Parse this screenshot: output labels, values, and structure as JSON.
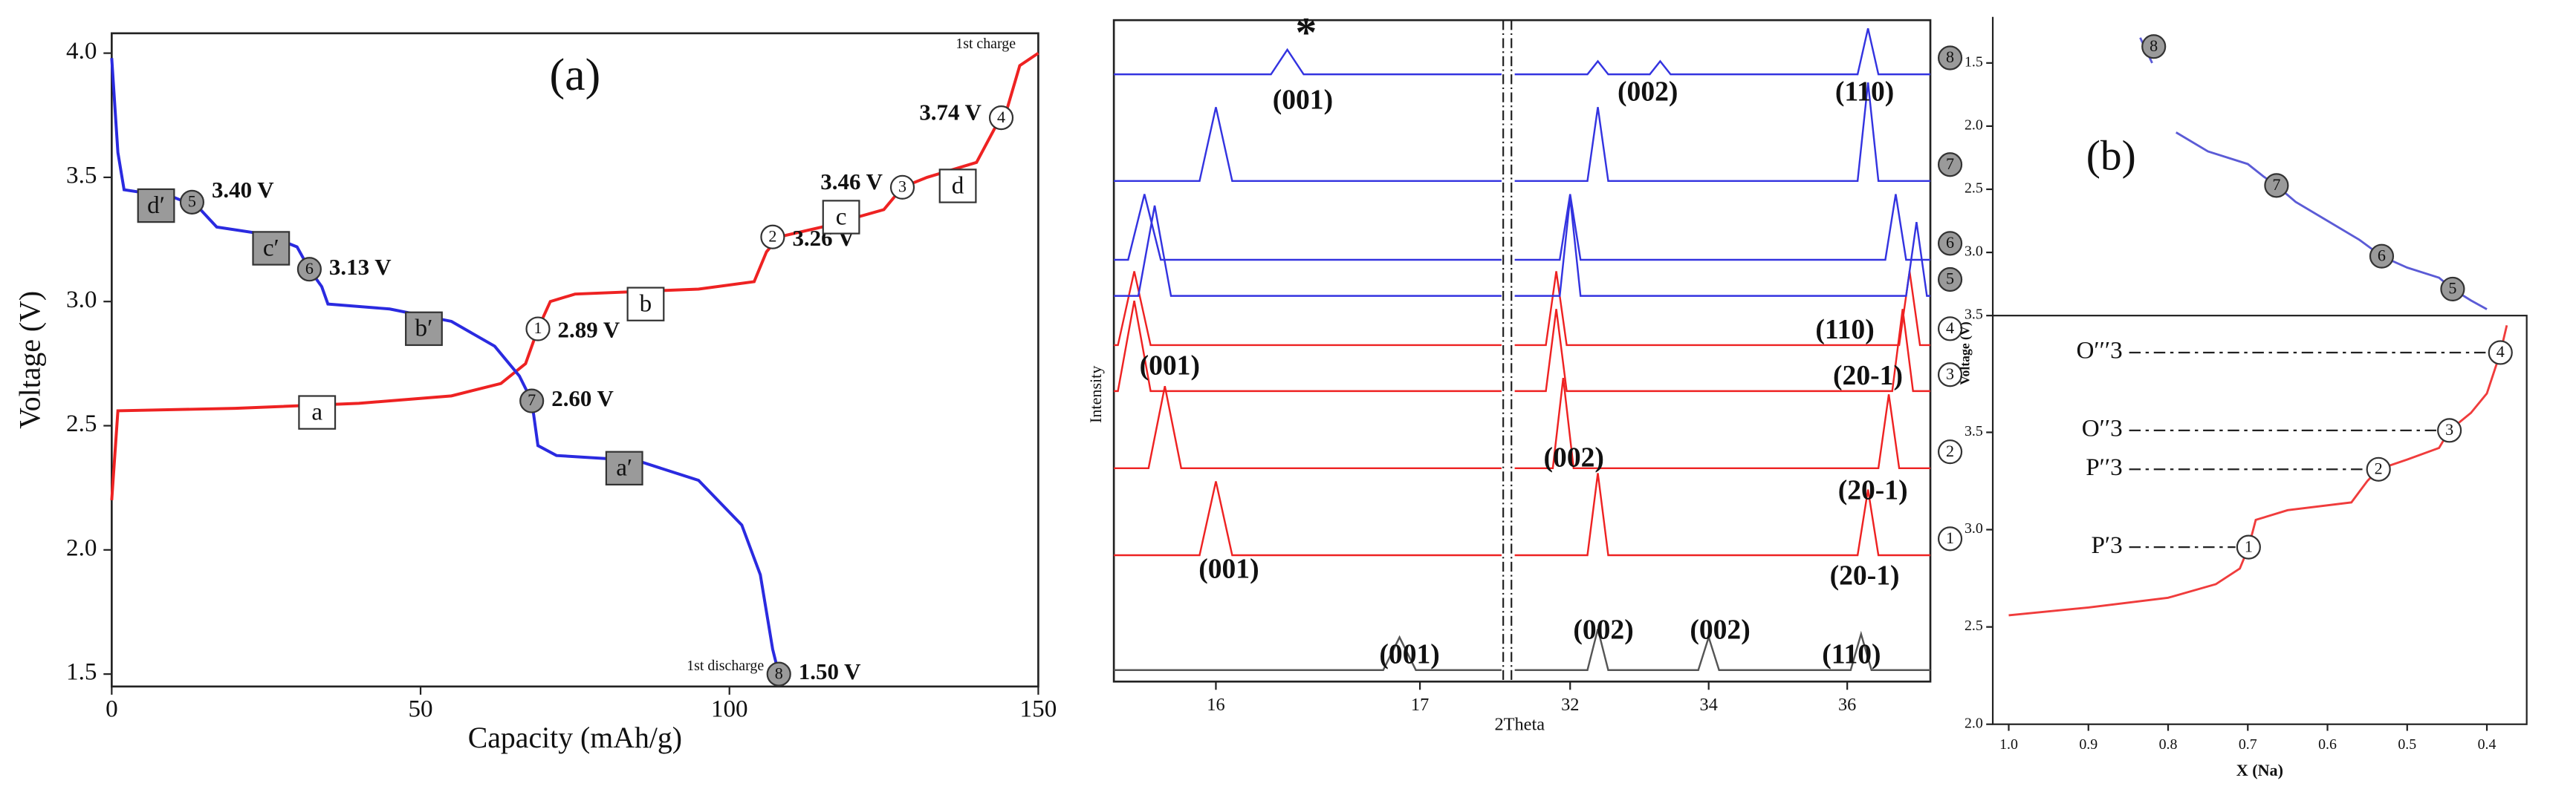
{
  "chart_data": [
    {
      "type": "line",
      "panel_label": "(a)",
      "xlabel": "Capacity (mAh/g)",
      "ylabel": "Voltage (V)",
      "xlim": [
        0,
        150
      ],
      "xticks": [
        0,
        50,
        100,
        150
      ],
      "ylim": [
        1.45,
        4.08
      ],
      "yticks": [
        1.5,
        {
          "value": 2,
          "label": "2.0"
        },
        2.5,
        {
          "value": 3,
          "label": "3.0"
        },
        3.5,
        {
          "value": 4,
          "label": "4.0"
        }
      ],
      "series": [
        {
          "color": "#ee2222",
          "x": [
            0,
            1,
            20,
            40,
            55,
            63,
            67,
            69,
            71,
            75,
            95,
            104,
            106,
            108,
            115,
            125,
            128,
            132,
            140,
            143,
            145,
            147,
            150
          ],
          "values": [
            2.2,
            2.56,
            2.57,
            2.59,
            2.62,
            2.67,
            2.75,
            2.89,
            3.0,
            3.03,
            3.05,
            3.08,
            3.2,
            3.26,
            3.3,
            3.37,
            3.46,
            3.5,
            3.56,
            3.7,
            3.78,
            3.95,
            4.0
          ]
        },
        {
          "color": "#2a2ae0",
          "x": [
            0,
            1,
            2,
            10,
            14,
            17,
            25,
            30,
            32,
            34,
            35,
            45,
            55,
            62,
            66,
            68,
            69,
            72,
            85,
            95,
            102,
            105,
            107,
            108
          ],
          "values": [
            3.98,
            3.6,
            3.45,
            3.42,
            3.38,
            3.3,
            3.27,
            3.22,
            3.13,
            3.06,
            2.99,
            2.97,
            2.92,
            2.82,
            2.7,
            2.6,
            2.42,
            2.38,
            2.36,
            2.28,
            2.1,
            1.9,
            1.6,
            1.5
          ]
        }
      ],
      "markers": [
        {
          "label": "1",
          "x": 69,
          "y": 2.89,
          "text": "2.89 V",
          "color": "#ffffff"
        },
        {
          "label": "2",
          "x": 107,
          "y": 3.26,
          "text": "3.26 V",
          "color": "#ffffff"
        },
        {
          "label": "3",
          "x": 128,
          "y": 3.46,
          "text": "3.46 V",
          "color": "#ffffff"
        },
        {
          "label": "4",
          "x": 144,
          "y": 3.74,
          "text": "3.74 V",
          "color": "#ffffff"
        },
        {
          "label": "5",
          "x": 13,
          "y": 3.4,
          "text": "3.40 V",
          "color": "#9a9a9a"
        },
        {
          "label": "6",
          "x": 32,
          "y": 3.13,
          "text": "3.13 V",
          "color": "#9a9a9a"
        },
        {
          "label": "7",
          "x": 68,
          "y": 2.6,
          "text": "2.60 V",
          "color": "#9a9a9a"
        },
        {
          "label": "8",
          "x": 108,
          "y": 1.5,
          "text": "1.50 V",
          "color": "#9a9a9a"
        }
      ],
      "phase_labels": [
        "a",
        "b",
        "c",
        "d",
        "a′",
        "b′",
        "c′",
        "d′"
      ],
      "annotations": [
        "1st charge",
        "1st discharge"
      ]
    },
    {
      "type": "stacked-line",
      "ylabel": "Intensity",
      "xlim": [
        15.5,
        17.4
      ],
      "xticks": [
        16,
        17
      ],
      "series": [
        {
          "color": "#555555",
          "x": [
            15.5,
            16.82,
            16.9,
            16.98,
            17.4
          ],
          "values": [
            0,
            0,
            20,
            0,
            0
          ]
        },
        {
          "color": "#ee2222",
          "x": [
            15.5,
            15.92,
            16.0,
            16.08,
            17.4
          ],
          "values": [
            0,
            0,
            45,
            0,
            0
          ]
        },
        {
          "color": "#ee2222",
          "x": [
            15.5,
            15.67,
            15.75,
            15.83,
            17.4
          ],
          "values": [
            0,
            0,
            50,
            0,
            0
          ]
        },
        {
          "color": "#ee2222",
          "x": [
            15.5,
            15.52,
            15.6,
            15.68,
            17.4
          ],
          "values": [
            0,
            0,
            55,
            0,
            0
          ]
        },
        {
          "color": "#ee2222",
          "x": [
            15.5,
            15.52,
            15.6,
            15.68,
            17.4
          ],
          "values": [
            0,
            0,
            45,
            0,
            0
          ]
        },
        {
          "color": "#3333e0",
          "x": [
            15.5,
            15.62,
            15.7,
            15.78,
            17.4
          ],
          "values": [
            0,
            0,
            55,
            0,
            0
          ]
        },
        {
          "color": "#3333e0",
          "x": [
            15.5,
            15.57,
            15.65,
            15.73,
            17.4
          ],
          "values": [
            0,
            0,
            40,
            0,
            0
          ]
        },
        {
          "color": "#3333e0",
          "x": [
            15.5,
            15.92,
            16.0,
            16.08,
            17.4
          ],
          "values": [
            0,
            0,
            45,
            0,
            0
          ]
        },
        {
          "color": "#3333e0",
          "x": [
            15.5,
            16.27,
            16.35,
            16.43,
            17.4
          ],
          "values": [
            0,
            0,
            15,
            0,
            0
          ]
        }
      ]
    },
    {
      "type": "stacked-line",
      "xlabel": "2Theta",
      "xlim": [
        31.2,
        37.2
      ],
      "xticks": [
        32,
        34,
        36
      ],
      "series": [
        {
          "color": "#555555",
          "x": [
            31.2,
            32.25,
            32.4,
            32.55,
            33.85,
            34.0,
            34.15,
            36.05,
            36.2,
            36.35,
            37.2
          ],
          "values": [
            0,
            0,
            25,
            0,
            0,
            20,
            0,
            0,
            22,
            0,
            0
          ]
        },
        {
          "name": "1",
          "marker_color": "#ffffff",
          "color": "#ee2222",
          "x": [
            31.2,
            32.25,
            32.4,
            32.55,
            36.15,
            36.3,
            36.45,
            37.2
          ],
          "values": [
            0,
            0,
            50,
            0,
            0,
            40,
            0,
            0
          ]
        },
        {
          "name": "2",
          "marker_color": "#ffffff",
          "color": "#ee2222",
          "x": [
            31.2,
            31.75,
            31.9,
            32.05,
            36.45,
            36.6,
            36.75,
            37.2
          ],
          "values": [
            0,
            0,
            55,
            0,
            0,
            45,
            0,
            0
          ]
        },
        {
          "name": "3",
          "marker_color": "#ffffff",
          "color": "#ee2222",
          "x": [
            31.2,
            31.65,
            31.8,
            31.95,
            36.65,
            36.8,
            36.95,
            37.2
          ],
          "values": [
            0,
            0,
            50,
            0,
            0,
            50,
            0,
            0
          ]
        },
        {
          "name": "4",
          "marker_color": "#ffffff",
          "color": "#ee2222",
          "x": [
            31.2,
            31.65,
            31.8,
            31.95,
            36.75,
            36.9,
            37.05,
            37.2
          ],
          "values": [
            0,
            0,
            45,
            0,
            0,
            45,
            0,
            0
          ]
        },
        {
          "name": "5",
          "marker_color": "#9a9a9a",
          "color": "#3333e0",
          "x": [
            31.2,
            31.85,
            32.0,
            32.15,
            36.85,
            37.0,
            37.15,
            37.2
          ],
          "values": [
            0,
            0,
            60,
            0,
            0,
            45,
            0,
            0
          ]
        },
        {
          "name": "6",
          "marker_color": "#9a9a9a",
          "color": "#3333e0",
          "x": [
            31.2,
            31.85,
            32.0,
            32.15,
            36.55,
            36.7,
            36.85,
            37.2
          ],
          "values": [
            0,
            0,
            40,
            0,
            0,
            40,
            0,
            0
          ]
        },
        {
          "name": "7",
          "marker_color": "#9a9a9a",
          "color": "#3333e0",
          "x": [
            31.2,
            32.25,
            32.4,
            32.55,
            36.15,
            36.3,
            36.45,
            37.2
          ],
          "values": [
            0,
            0,
            45,
            0,
            0,
            60,
            0,
            0
          ]
        },
        {
          "name": "8",
          "marker_color": "#9a9a9a",
          "color": "#3333e0",
          "x": [
            31.2,
            32.25,
            32.4,
            32.55,
            33.15,
            33.3,
            33.45,
            36.15,
            36.3,
            36.45,
            37.2
          ],
          "values": [
            0,
            0,
            8,
            0,
            0,
            8,
            0,
            0,
            28,
            0,
            0
          ]
        }
      ],
      "annotations": [
        "*",
        "(001)",
        "(002)",
        "(110)",
        "(001)",
        "(110)",
        "(20-1)",
        "(002)",
        "(20-1)",
        "(001)",
        "(20-1)",
        "(001)",
        "(002)",
        "(002)",
        "(110)"
      ]
    },
    {
      "type": "line",
      "panel_label": "(b)",
      "xlim": [
        1.02,
        0.35
      ],
      "ylim": [
        3.5,
        1.2
      ],
      "yticks": [
        1.5,
        {
          "value": 2,
          "label": "2.0"
        },
        2.5,
        {
          "value": 3,
          "label": "3.0"
        },
        3.5
      ],
      "series": [
        {
          "color": "#5b5bd6",
          "x": [
            0.835,
            0.82,
            0.81,
            0.79,
            0.75,
            0.7,
            0.68,
            0.664,
            0.64,
            0.6,
            0.56,
            0.532,
            0.5,
            0.46,
            0.443,
            0.42,
            0.4
          ],
          "values": [
            1.3,
            1.5,
            null,
            2.05,
            2.2,
            2.3,
            2.4,
            2.47,
            2.6,
            2.75,
            2.9,
            3.03,
            3.12,
            3.2,
            3.29,
            3.38,
            3.45
          ]
        }
      ],
      "markers": [
        {
          "label": "5",
          "x": 0.443,
          "y": 3.29,
          "color": "#9a9a9a"
        },
        {
          "label": "6",
          "x": 0.532,
          "y": 3.03,
          "color": "#9a9a9a"
        },
        {
          "label": "7",
          "x": 0.664,
          "y": 2.47,
          "color": "#9a9a9a"
        },
        {
          "label": "8",
          "x": 0.818,
          "y": 1.37,
          "color": "#9a9a9a"
        }
      ]
    },
    {
      "type": "line",
      "xlabel": "X (Na)",
      "ylabel": "Voltage (V)",
      "xlim": [
        1.02,
        0.35
      ],
      "ylim": [
        2.0,
        4.1
      ],
      "xticks": [
        {
          "value": 1,
          "label": "1.0"
        },
        0.9,
        0.8,
        0.7,
        0.6,
        0.5,
        0.4
      ],
      "yticks": [
        {
          "value": 2,
          "label": "2.0"
        },
        2.5,
        {
          "value": 3,
          "label": "3.0"
        },
        3.5
      ],
      "series": [
        {
          "color": "#f03c3c",
          "x": [
            1.0,
            0.9,
            0.8,
            0.74,
            0.71,
            0.699,
            0.69,
            0.65,
            0.57,
            0.55,
            0.536,
            0.5,
            0.46,
            0.447,
            0.42,
            0.4,
            0.383,
            0.375
          ],
          "values": [
            2.56,
            2.6,
            2.65,
            2.72,
            2.8,
            2.91,
            3.05,
            3.1,
            3.14,
            3.25,
            3.31,
            3.36,
            3.42,
            3.51,
            3.6,
            3.7,
            3.91,
            4.05
          ]
        }
      ],
      "markers": [
        {
          "label": "1",
          "x": 0.699,
          "y": 2.91,
          "color": "#ffffff"
        },
        {
          "label": "2",
          "x": 0.536,
          "y": 3.31,
          "color": "#ffffff"
        },
        {
          "label": "3",
          "x": 0.447,
          "y": 3.51,
          "color": "#ffffff"
        },
        {
          "label": "4",
          "x": 0.383,
          "y": 3.91,
          "color": "#ffffff"
        }
      ],
      "phase_labels": [
        "O′′′3",
        "O′′3",
        "P′′3",
        "P′3"
      ]
    }
  ]
}
